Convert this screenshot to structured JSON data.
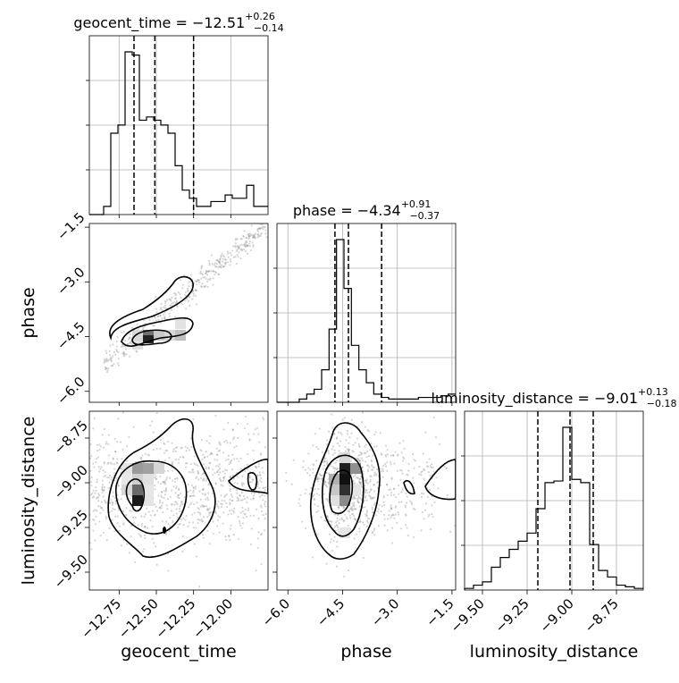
{
  "chart_data": {
    "type": "corner",
    "parameters": [
      "geocent_time",
      "phase",
      "luminosity_distance"
    ],
    "titles": [
      {
        "name": "geocent_time",
        "median": "-12.51",
        "plus": "+0.26",
        "minus": "-0.14"
      },
      {
        "name": "phase",
        "median": "-4.34",
        "plus": "+0.91",
        "minus": "-0.37"
      },
      {
        "name": "luminosity_distance",
        "median": "-9.01",
        "plus": "+0.13",
        "minus": "-0.18"
      }
    ],
    "axes": {
      "geocent_time": {
        "label": "geocent_time",
        "range": [
          -12.95,
          -11.75
        ],
        "ticks": [
          -12.75,
          -12.5,
          -12.25,
          -12.0
        ],
        "tick_labels": [
          "−12.75",
          "−12.50",
          "−12.25",
          "−12.00"
        ]
      },
      "phase": {
        "label": "phase",
        "range": [
          -6.3,
          -1.4
        ],
        "ticks": [
          -6.0,
          -4.5,
          -3.0,
          -1.5
        ],
        "tick_labels": [
          "−6.0",
          "−4.5",
          "−3.0",
          "−1.5"
        ]
      },
      "luminosity_distance": {
        "label": "luminosity_distance",
        "range": [
          -9.6,
          -8.6
        ],
        "ticks": [
          -9.5,
          -9.25,
          -9.0,
          -8.75
        ],
        "tick_labels": [
          "−9.50",
          "−9.25",
          "−9.00",
          "−8.75"
        ]
      }
    },
    "histograms": [
      {
        "param": "geocent_time",
        "quantiles": [
          -12.65,
          -12.51,
          -12.25
        ],
        "counts": [
          0,
          0,
          0.05,
          0.5,
          0.55,
          1.0,
          0.98,
          0.58,
          0.6,
          0.58,
          0.55,
          0.5,
          0.3,
          0.15,
          0.1,
          0.05,
          0.05,
          0.08,
          0.08,
          0.12,
          0.1,
          0.1,
          0.18,
          0.05,
          0.05
        ]
      },
      {
        "param": "phase",
        "quantiles": [
          -4.71,
          -4.34,
          -3.43
        ],
        "counts": [
          0,
          0,
          0,
          0.02,
          0.05,
          0.08,
          0.2,
          0.45,
          1.0,
          0.7,
          0.35,
          0.2,
          0.12,
          0.05,
          0.03,
          0.02,
          0.02,
          0.02,
          0.02,
          0.03,
          0.03,
          0.03,
          0.04,
          0.05
        ]
      },
      {
        "param": "luminosity_distance",
        "quantiles": [
          -9.19,
          -9.01,
          -8.88
        ],
        "counts": [
          0.01,
          0.03,
          0.05,
          0.14,
          0.2,
          0.25,
          0.3,
          0.35,
          0.5,
          0.66,
          0.67,
          1.0,
          0.68,
          0.66,
          0.28,
          0.12,
          0.08,
          0.03,
          0.02,
          0.01
        ]
      }
    ],
    "grid": true
  }
}
